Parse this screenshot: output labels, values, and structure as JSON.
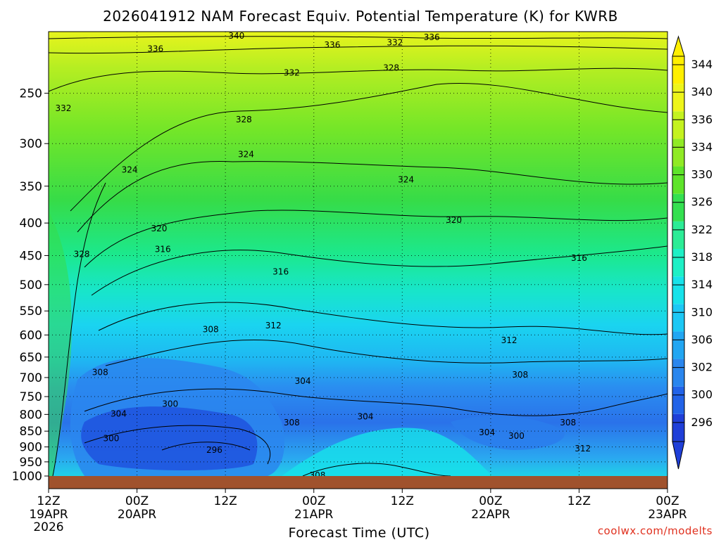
{
  "chart_data": {
    "type": "heatmap",
    "title": "2026041912 NAM Forecast Equiv. Potential Temperature (K) for KWRB",
    "xlabel": "Forecast Time (UTC)",
    "ylabel": "",
    "credit": "coolwx.com/modelts",
    "x_ticks": [
      {
        "line1": "12Z",
        "line2": "19APR",
        "line3": "2026",
        "hours": 0
      },
      {
        "line1": "00Z",
        "line2": "20APR",
        "line3": "",
        "hours": 12
      },
      {
        "line1": "12Z",
        "line2": "",
        "line3": "",
        "hours": 24
      },
      {
        "line1": "00Z",
        "line2": "21APR",
        "line3": "",
        "hours": 36
      },
      {
        "line1": "12Z",
        "line2": "",
        "line3": "",
        "hours": 48
      },
      {
        "line1": "00Z",
        "line2": "22APR",
        "line3": "",
        "hours": 60
      },
      {
        "line1": "12Z",
        "line2": "",
        "line3": "",
        "hours": 72
      },
      {
        "line1": "00Z",
        "line2": "23APR",
        "line3": "",
        "hours": 84
      }
    ],
    "xlim_hours": [
      0,
      84
    ],
    "y_ticks": [
      250,
      300,
      350,
      400,
      450,
      500,
      550,
      600,
      650,
      700,
      750,
      800,
      850,
      900,
      950,
      1000
    ],
    "ylim_hPa": [
      1000,
      200
    ],
    "y_scale": "log-pressure",
    "colorbar": {
      "levels": [
        296,
        300,
        302,
        306,
        310,
        314,
        318,
        322,
        326,
        330,
        334,
        336,
        340,
        344
      ],
      "labels": [
        "344",
        "340",
        "336",
        "334",
        "330",
        "326",
        "322",
        "318",
        "314",
        "310",
        "306",
        "302",
        "300",
        "296"
      ],
      "colors": [
        "#1f3fd8",
        "#2263e8",
        "#2a86ee",
        "#22a6f2",
        "#1cc8f5",
        "#17e2ea",
        "#1ef0c6",
        "#2cec96",
        "#34e050",
        "#5ee42a",
        "#90ea25",
        "#c4f21f",
        "#eef51a",
        "#ffef00"
      ]
    },
    "contour_labels": [
      {
        "text": "340",
        "hours": 25.5,
        "hPa": 203
      },
      {
        "text": "336",
        "hours": 52.0,
        "hPa": 204
      },
      {
        "text": "336",
        "hours": 14.5,
        "hPa": 213
      },
      {
        "text": "336",
        "hours": 38.5,
        "hPa": 210
      },
      {
        "text": "332",
        "hours": 47.0,
        "hPa": 208
      },
      {
        "text": "332",
        "hours": 33.0,
        "hPa": 232
      },
      {
        "text": "328",
        "hours": 46.5,
        "hPa": 228
      },
      {
        "text": "332",
        "hours": 2.0,
        "hPa": 264
      },
      {
        "text": "328",
        "hours": 26.5,
        "hPa": 275
      },
      {
        "text": "324",
        "hours": 26.8,
        "hPa": 312
      },
      {
        "text": "324",
        "hours": 11.0,
        "hPa": 330
      },
      {
        "text": "324",
        "hours": 48.5,
        "hPa": 342
      },
      {
        "text": "320",
        "hours": 15.0,
        "hPa": 408
      },
      {
        "text": "320",
        "hours": 55.0,
        "hPa": 396
      },
      {
        "text": "316",
        "hours": 15.5,
        "hPa": 440
      },
      {
        "text": "328",
        "hours": 4.5,
        "hPa": 448
      },
      {
        "text": "316",
        "hours": 31.5,
        "hPa": 477
      },
      {
        "text": "316",
        "hours": 72.0,
        "hPa": 454
      },
      {
        "text": "308",
        "hours": 22.0,
        "hPa": 588
      },
      {
        "text": "312",
        "hours": 30.5,
        "hPa": 580
      },
      {
        "text": "312",
        "hours": 62.5,
        "hPa": 612
      },
      {
        "text": "308",
        "hours": 7.0,
        "hPa": 687
      },
      {
        "text": "304",
        "hours": 34.5,
        "hPa": 709
      },
      {
        "text": "308",
        "hours": 64.0,
        "hPa": 693
      },
      {
        "text": "300",
        "hours": 16.5,
        "hPa": 770
      },
      {
        "text": "304",
        "hours": 9.5,
        "hPa": 798
      },
      {
        "text": "304",
        "hours": 43.0,
        "hPa": 806
      },
      {
        "text": "308",
        "hours": 33.0,
        "hPa": 824
      },
      {
        "text": "308",
        "hours": 70.5,
        "hPa": 824
      },
      {
        "text": "304",
        "hours": 59.5,
        "hPa": 854
      },
      {
        "text": "300",
        "hours": 63.5,
        "hPa": 865
      },
      {
        "text": "300",
        "hours": 8.5,
        "hPa": 873
      },
      {
        "text": "312",
        "hours": 72.5,
        "hPa": 906
      },
      {
        "text": "296",
        "hours": 22.5,
        "hPa": 910
      },
      {
        "text": "308",
        "hours": 36.5,
        "hPa": 998
      }
    ]
  }
}
